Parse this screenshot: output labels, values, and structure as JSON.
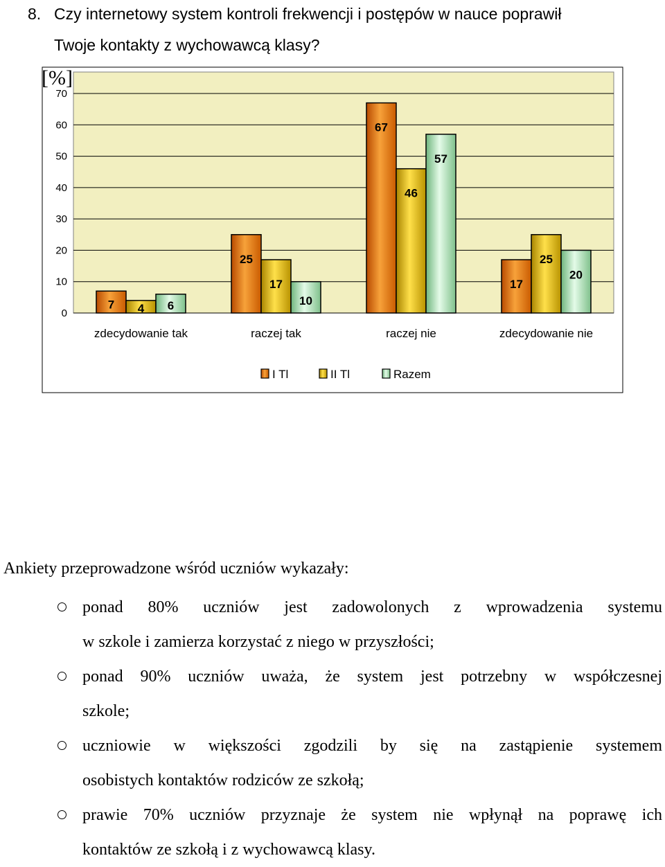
{
  "question": {
    "number": "8.",
    "line1": "Czy internetowy system kontroli frekwencji i postępów w nauce poprawił",
    "line2": "Twoje kontakty z wychowawcą klasy?"
  },
  "chart_data": {
    "type": "bar",
    "yunit_label": "[%]",
    "ylim": [
      0,
      70
    ],
    "yticks": [
      "0",
      "10",
      "20",
      "30",
      "40",
      "50",
      "60",
      "70"
    ],
    "grid": true,
    "categories": [
      "zdecydowanie tak",
      "raczej tak",
      "raczej nie",
      "zdecydowanie nie"
    ],
    "series": [
      {
        "name": "I Tl",
        "values": [
          7,
          25,
          67,
          17
        ]
      },
      {
        "name": "II Tl",
        "values": [
          4,
          17,
          46,
          25
        ]
      },
      {
        "name": "Razem",
        "values": [
          6,
          10,
          57,
          20
        ]
      }
    ],
    "data_labels": [
      [
        "7",
        "25",
        "67",
        "17"
      ],
      [
        "4",
        "17",
        "46",
        "25"
      ],
      [
        "6",
        "10",
        "57",
        "20"
      ]
    ],
    "legend_position": "bottom",
    "colors": {
      "plot_background": "#f2efc0",
      "chart_background": "#ffffff",
      "series": [
        "#e8720c",
        "#e6b800",
        "#a9e3b2"
      ]
    }
  },
  "findings": {
    "intro": "Ankiety przeprowadzone wśród uczniów wykazały:",
    "items": [
      {
        "line1": "ponad 80% uczniów jest zadowolonych z wprowadzenia systemu",
        "line2": "w szkole i zamierza korzystać z niego w przyszłości;"
      },
      {
        "line1": "ponad 90% uczniów uważa, że system jest potrzebny w współczesnej",
        "line2": "szkole;"
      },
      {
        "line1": "uczniowie w większości zgodzili by się na zastąpienie systemem",
        "line2": "osobistych kontaktów rodziców ze szkołą;"
      },
      {
        "line1": "prawie 70% uczniów przyznaje że system nie wpłynął na poprawę ich",
        "line2": "kontaktów ze szkołą i z wychowawcą klasy."
      }
    ]
  }
}
